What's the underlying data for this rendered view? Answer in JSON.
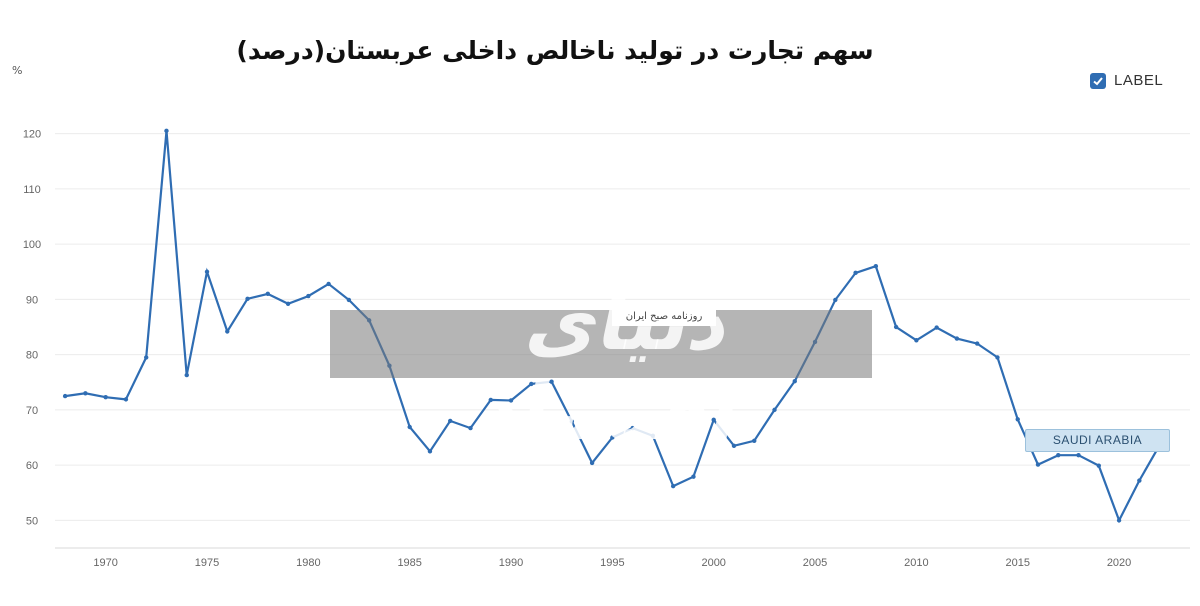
{
  "title": "سهم تجارت در تولید ناخالص داخلی عربستان(درصد)",
  "unit_label": "%",
  "legend": {
    "label": "LABEL",
    "color": "#2f6db3"
  },
  "series_tag": "SAUDI ARABIA",
  "watermark": {
    "main": "دنیای اقتصاد",
    "sub": "روزنامه صبح ایران"
  },
  "chart_data": {
    "type": "line",
    "ylim": [
      45,
      125
    ],
    "xlim": [
      1967.5,
      2023.5
    ],
    "yticks": [
      50,
      60,
      70,
      80,
      90,
      100,
      110,
      120
    ],
    "xticks": [
      1970,
      1975,
      1980,
      1985,
      1990,
      1995,
      2000,
      2005,
      2010,
      2015,
      2020
    ],
    "grid": "horizontal",
    "line_color": "#2f6db3",
    "series": [
      {
        "x": [
          1968,
          1969,
          1970,
          1971,
          1972,
          1973,
          1974,
          1975,
          1976,
          1977,
          1978,
          1979,
          1980,
          1981,
          1982,
          1983,
          1984,
          1985,
          1986,
          1987,
          1988,
          1989,
          1990,
          1991,
          1992,
          1993,
          1994,
          1995,
          1996,
          1997,
          1998,
          1999,
          2000,
          2001,
          2002,
          2003,
          2004,
          2005,
          2006,
          2007,
          2008,
          2009,
          2010,
          2011,
          2012,
          2013,
          2014,
          2015,
          2016,
          2017,
          2018,
          2019,
          2020,
          2021,
          2022
        ],
        "values": [
          72.5,
          73.0,
          72.3,
          71.9,
          79.5,
          120.5,
          76.3,
          95.0,
          84.2,
          90.1,
          91.0,
          89.2,
          90.6,
          92.8,
          89.9,
          86.2,
          78.0,
          66.9,
          62.5,
          68.0,
          66.7,
          71.8,
          71.7,
          74.7,
          75.1,
          67.9,
          60.4,
          65.0,
          66.7,
          65.3,
          56.2,
          57.9,
          68.2,
          63.5,
          64.4,
          70.0,
          75.2,
          82.3,
          89.9,
          94.8,
          96.0,
          85.0,
          82.6,
          84.9,
          82.9,
          82.0,
          79.5,
          68.3,
          60.1,
          61.8,
          61.8,
          59.9,
          50.0,
          57.2,
          63.6
        ]
      }
    ]
  }
}
